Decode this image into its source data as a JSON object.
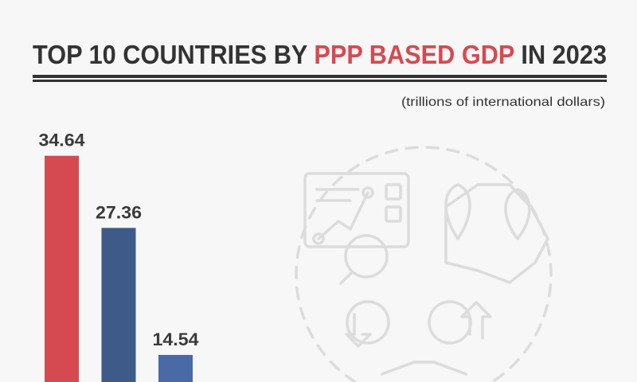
{
  "chart_data": {
    "type": "bar",
    "title_parts": [
      "TOP 10 COUNTRIES BY ",
      "PPP BASED GDP",
      " IN 2023"
    ],
    "subtitle": "(trillions of international dollars)",
    "categories": [
      "",
      "",
      ""
    ],
    "values": [
      34.64,
      27.36,
      14.54
    ],
    "value_labels": [
      "34.64",
      "27.36",
      "14.54"
    ],
    "ylim": [
      0,
      36
    ],
    "grid": false,
    "colors": [
      "#d54a50",
      "#3d5a88",
      "#4a6aa5"
    ],
    "accent": "#d54a50",
    "decorative_icon": "finance-map-analytics-icon"
  }
}
